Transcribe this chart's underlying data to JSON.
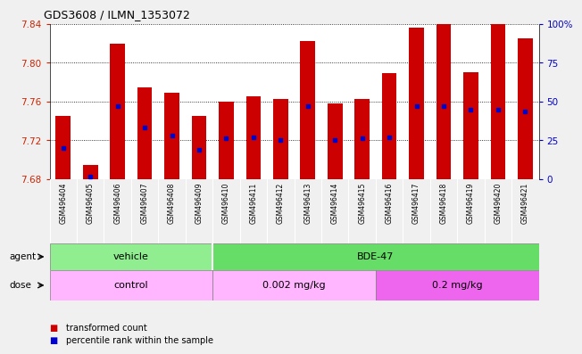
{
  "title": "GDS3608 / ILMN_1353072",
  "samples": [
    "GSM496404",
    "GSM496405",
    "GSM496406",
    "GSM496407",
    "GSM496408",
    "GSM496409",
    "GSM496410",
    "GSM496411",
    "GSM496412",
    "GSM496413",
    "GSM496414",
    "GSM496415",
    "GSM496416",
    "GSM496417",
    "GSM496418",
    "GSM496419",
    "GSM496420",
    "GSM496421"
  ],
  "bar_tops": [
    7.745,
    7.695,
    7.82,
    7.775,
    7.769,
    7.745,
    7.76,
    7.765,
    7.763,
    7.822,
    7.758,
    7.763,
    7.789,
    7.836,
    7.84,
    7.79,
    7.84,
    7.825
  ],
  "blue_dot_y": [
    7.712,
    7.683,
    7.755,
    7.733,
    7.725,
    7.71,
    7.722,
    7.723,
    7.72,
    7.755,
    7.72,
    7.722,
    7.723,
    7.755,
    7.755,
    7.752,
    7.752,
    7.75
  ],
  "ymin": 7.68,
  "ymax": 7.84,
  "yticks_left": [
    7.68,
    7.72,
    7.76,
    7.8,
    7.84
  ],
  "yticks_right": [
    0,
    25,
    50,
    75,
    100
  ],
  "bar_color": "#CC0000",
  "dot_color": "#0000CC",
  "left_color": "#CC2200",
  "right_color": "#0000CC",
  "plot_bg": "#FFFFFF",
  "xtick_bg": "#D8D8D8",
  "fig_bg": "#F0F0F0",
  "vehicle_color": "#90EE90",
  "bde47_color": "#66DD66",
  "control_color": "#FFB6FF",
  "dose002_color": "#FFB6FF",
  "dose02_color": "#EE66EE",
  "legend_red": "transformed count",
  "legend_blue": "percentile rank within the sample",
  "agent_row": [
    {
      "label": "vehicle",
      "start": 0,
      "end": 6
    },
    {
      "label": "BDE-47",
      "start": 6,
      "end": 18
    }
  ],
  "dose_row": [
    {
      "label": "control",
      "start": 0,
      "end": 6
    },
    {
      "label": "0.002 mg/kg",
      "start": 6,
      "end": 12
    },
    {
      "label": "0.2 mg/kg",
      "start": 12,
      "end": 18
    }
  ]
}
